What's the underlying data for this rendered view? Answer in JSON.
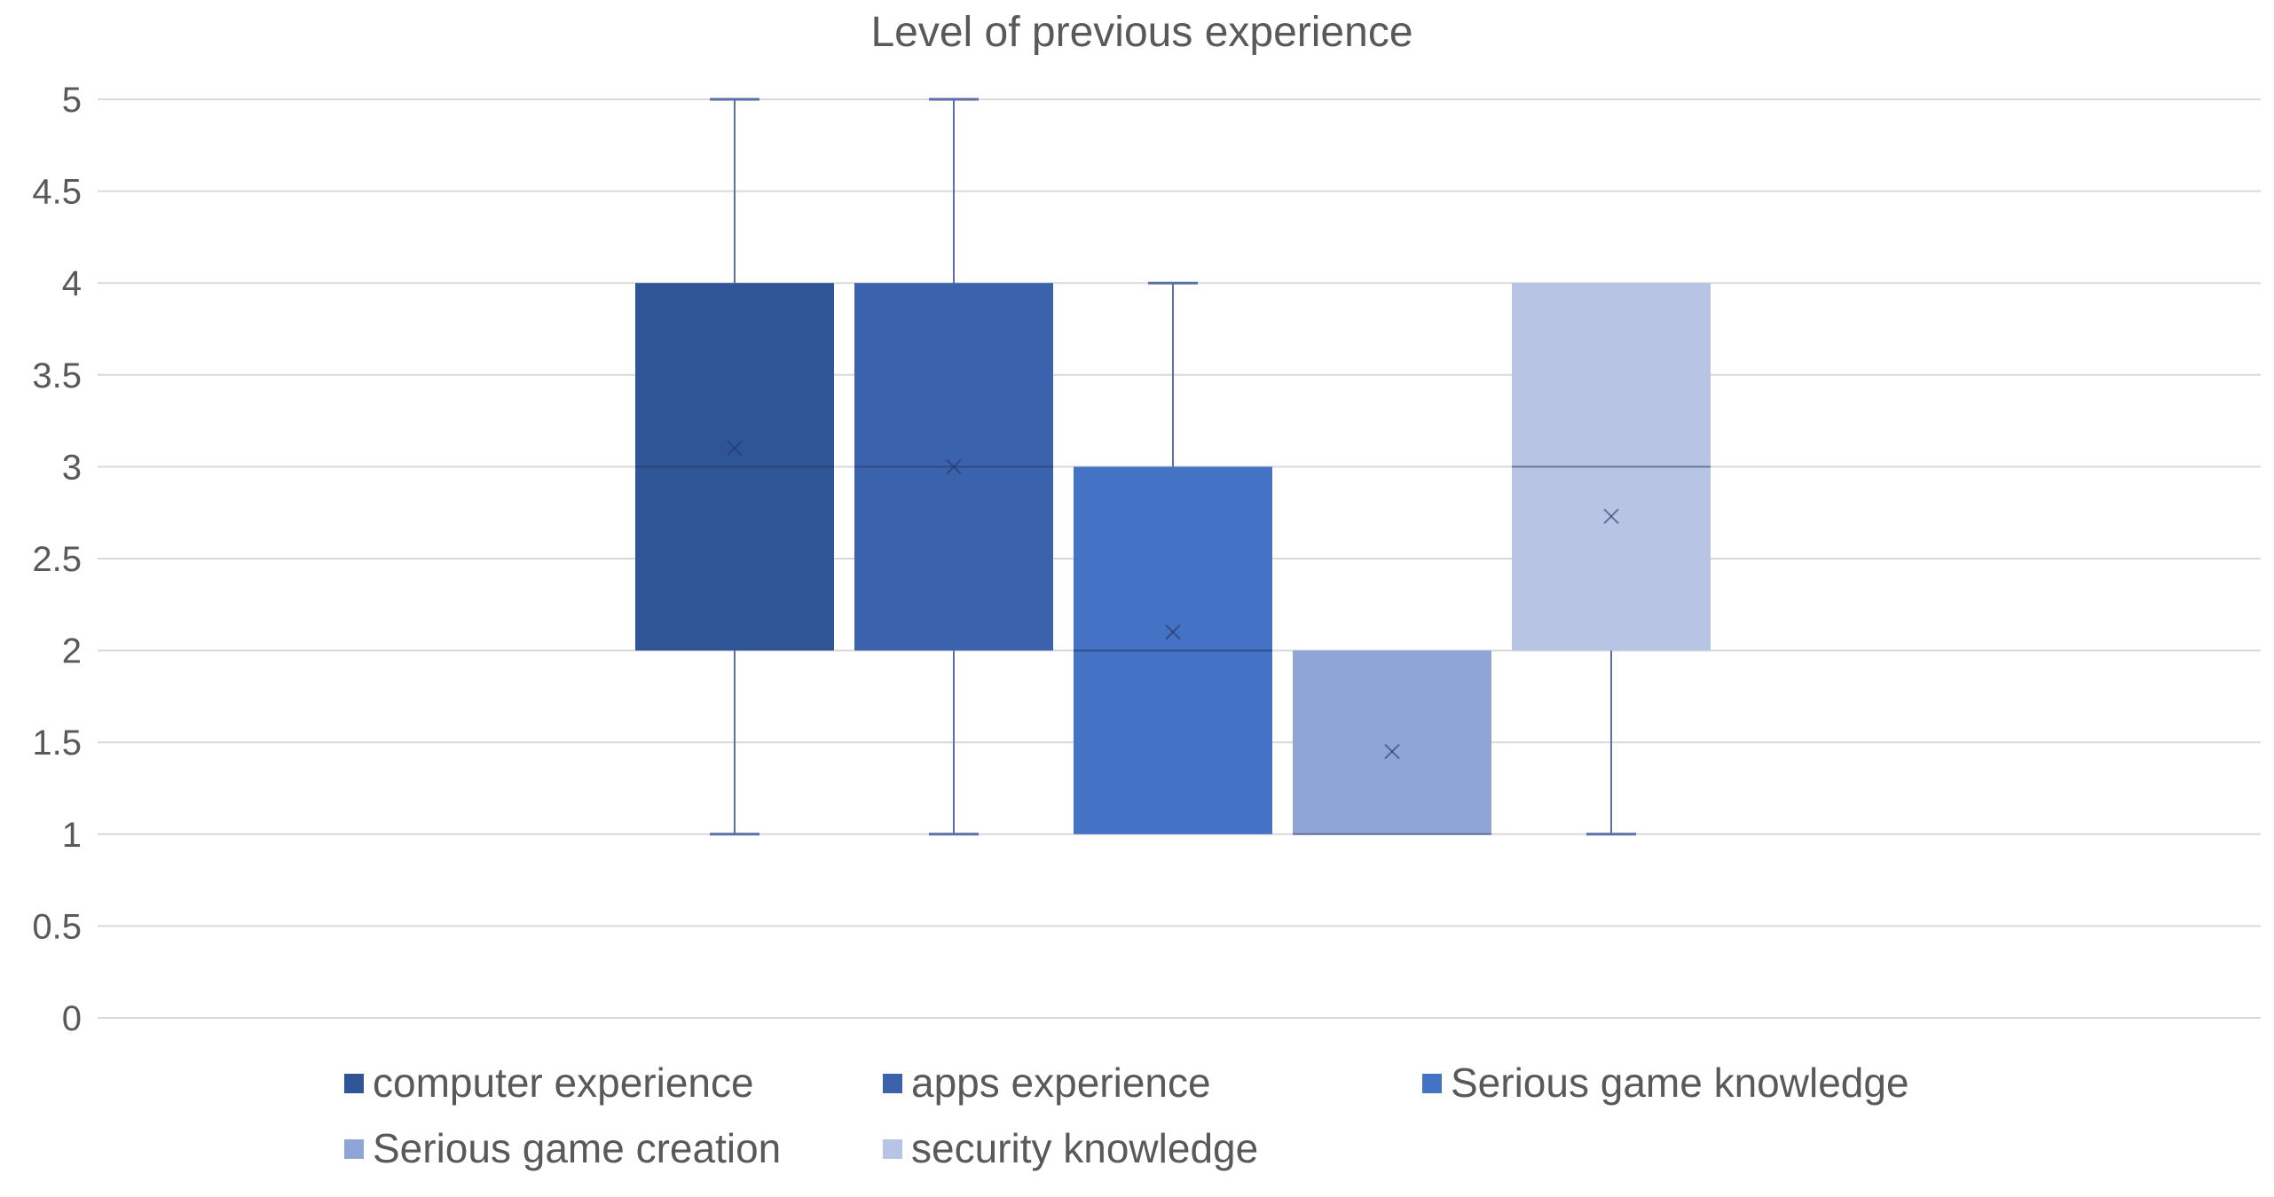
{
  "chart_data": {
    "type": "box",
    "title": "Level of previous experience",
    "xlabel": "",
    "ylabel": "",
    "ylim": [
      0,
      5
    ],
    "yticks": [
      0,
      0.5,
      1,
      1.5,
      2,
      2.5,
      3,
      3.5,
      4,
      4.5,
      5
    ],
    "ytick_labels": [
      "0",
      "0.5",
      "1",
      "1.5",
      "2",
      "2.5",
      "3",
      "3.5",
      "4",
      "4.5",
      "5"
    ],
    "grid": true,
    "legend_position": "bottom",
    "series": [
      {
        "name": "computer experience",
        "color": "#2F5597",
        "min": 1,
        "q1": 2,
        "median": 3,
        "q3": 4,
        "max": 5,
        "mean": 3.1
      },
      {
        "name": "apps experience",
        "color": "#3A62AD",
        "min": 1,
        "q1": 2,
        "median": 3,
        "q3": 4,
        "max": 5,
        "mean": 3.0
      },
      {
        "name": "Serious game knowledge",
        "color": "#4472C4",
        "min": 1,
        "q1": 1,
        "median": 2,
        "q3": 3,
        "max": 4,
        "mean": 2.1
      },
      {
        "name": "Serious game creation",
        "color": "#8FA5D6",
        "min": 1,
        "q1": 1,
        "median": 1,
        "q3": 2,
        "max": 2,
        "mean": 1.45
      },
      {
        "name": "security knowledge",
        "color": "#B8C4E4",
        "min": 1,
        "q1": 2,
        "median": 3,
        "q3": 4,
        "max": 4,
        "mean": 2.73
      }
    ]
  }
}
